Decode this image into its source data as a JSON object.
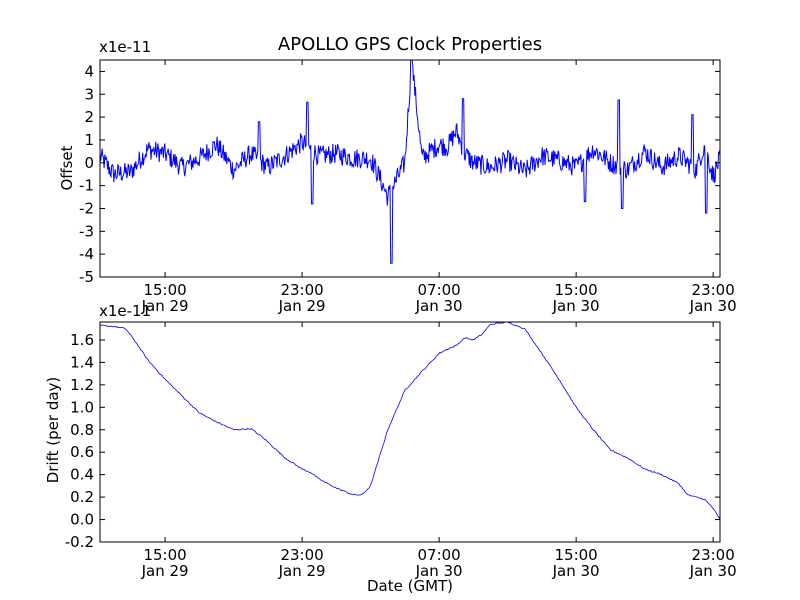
{
  "title": "APOLLO GPS Clock Properties",
  "colors": {
    "line": "#0000ff",
    "axes": "#000000",
    "background": "#ffffff"
  },
  "chart_data": [
    {
      "type": "line",
      "title": "APOLLO GPS Clock Properties",
      "xlabel": "",
      "ylabel": "Offset",
      "y_multiplier": "x1e-11",
      "ylim": [
        -5,
        4.5
      ],
      "y_ticks": [
        "-5",
        "-4",
        "-3",
        "-2",
        "-1",
        "0",
        "1",
        "2",
        "3",
        "4"
      ],
      "x_ticks": [
        {
          "time": "15:00",
          "date": "Jan 29"
        },
        {
          "time": "23:00",
          "date": "Jan 29"
        },
        {
          "time": "07:00",
          "date": "Jan 30"
        },
        {
          "time": "15:00",
          "date": "Jan 30"
        },
        {
          "time": "23:00",
          "date": "Jan 30"
        }
      ],
      "x_range_hours": [
        11.2,
        47.4
      ],
      "grid": false,
      "series": [
        {
          "x_hours": [
            11.2,
            12.0,
            13.0,
            14.0,
            15.0,
            16.0,
            17.0,
            18.0,
            19.0,
            20.0,
            21.0,
            22.0,
            23.0,
            24.0,
            25.0,
            26.0,
            27.0,
            27.5,
            28.0,
            29.0,
            29.4,
            30.0,
            30.5,
            31.0,
            31.5,
            32.0,
            32.5,
            33.0,
            34.0,
            35.0,
            36.0,
            37.0,
            38.0,
            39.0,
            40.0,
            41.0,
            42.0,
            43.0,
            44.0,
            45.0,
            46.0,
            46.5,
            47.0,
            47.4
          ],
          "values": [
            0.3,
            -0.5,
            -0.4,
            0.6,
            0.4,
            -0.2,
            0.2,
            0.8,
            -0.3,
            0.4,
            -0.2,
            0.3,
            0.9,
            0.3,
            0.4,
            0.2,
            0.2,
            -0.6,
            -1.5,
            0.0,
            4.5,
            0.2,
            0.5,
            0.8,
            0.7,
            1.4,
            0.4,
            0.0,
            -0.2,
            0.1,
            -0.4,
            0.3,
            0.1,
            -0.2,
            0.6,
            0.0,
            -0.3,
            0.5,
            -0.2,
            0.3,
            -0.3,
            0.8,
            -0.6,
            0.2
          ],
          "noise_amplitude": 0.45,
          "spikes": [
            {
              "x_hours": 20.5,
              "value": 1.8
            },
            {
              "x_hours": 23.3,
              "value": 2.65
            },
            {
              "x_hours": 23.6,
              "value": -1.8
            },
            {
              "x_hours": 28.2,
              "value": -4.4
            },
            {
              "x_hours": 29.4,
              "value": 4.5
            },
            {
              "x_hours": 32.4,
              "value": 2.8
            },
            {
              "x_hours": 39.5,
              "value": -1.7
            },
            {
              "x_hours": 41.5,
              "value": 2.75
            },
            {
              "x_hours": 41.7,
              "value": -2.0
            },
            {
              "x_hours": 45.8,
              "value": 2.1
            },
            {
              "x_hours": 46.6,
              "value": -2.2
            }
          ]
        }
      ]
    },
    {
      "type": "line",
      "title": "",
      "xlabel": "Date (GMT)",
      "ylabel": "Drift (per day)",
      "y_multiplier": "x1e-11",
      "ylim": [
        -0.2,
        1.76
      ],
      "y_ticks": [
        "-0.2",
        "0.0",
        "0.2",
        "0.4",
        "0.6",
        "0.8",
        "1.0",
        "1.2",
        "1.4",
        "1.6"
      ],
      "x_ticks": [
        {
          "time": "15:00",
          "date": "Jan 29"
        },
        {
          "time": "23:00",
          "date": "Jan 29"
        },
        {
          "time": "07:00",
          "date": "Jan 30"
        },
        {
          "time": "15:00",
          "date": "Jan 30"
        },
        {
          "time": "23:00",
          "date": "Jan 30"
        }
      ],
      "x_range_hours": [
        11.2,
        47.4
      ],
      "grid": false,
      "series": [
        {
          "x_hours": [
            11.2,
            12.0,
            12.7,
            13.2,
            14.0,
            15.0,
            16.0,
            17.0,
            18.0,
            19.0,
            20.0,
            20.8,
            21.5,
            22.0,
            23.0,
            23.5,
            24.0,
            25.0,
            26.0,
            26.5,
            27.0,
            27.5,
            28.0,
            29.0,
            30.0,
            30.5,
            31.0,
            31.5,
            32.0,
            32.5,
            33.0,
            33.5,
            34.0,
            35.0,
            36.0,
            37.0,
            38.0,
            39.0,
            40.0,
            41.0,
            42.0,
            43.0,
            44.0,
            45.0,
            45.5,
            46.0,
            46.5,
            47.0,
            47.4
          ],
          "values": [
            1.73,
            1.72,
            1.7,
            1.6,
            1.42,
            1.25,
            1.1,
            0.95,
            0.87,
            0.8,
            0.81,
            0.72,
            0.62,
            0.55,
            0.45,
            0.42,
            0.36,
            0.28,
            0.22,
            0.22,
            0.3,
            0.55,
            0.8,
            1.15,
            1.32,
            1.4,
            1.48,
            1.52,
            1.55,
            1.62,
            1.6,
            1.65,
            1.74,
            1.76,
            1.7,
            1.48,
            1.25,
            1.0,
            0.8,
            0.62,
            0.55,
            0.45,
            0.4,
            0.32,
            0.22,
            0.2,
            0.18,
            0.1,
            0.0
          ],
          "noise_amplitude": 0.006
        }
      ]
    }
  ]
}
